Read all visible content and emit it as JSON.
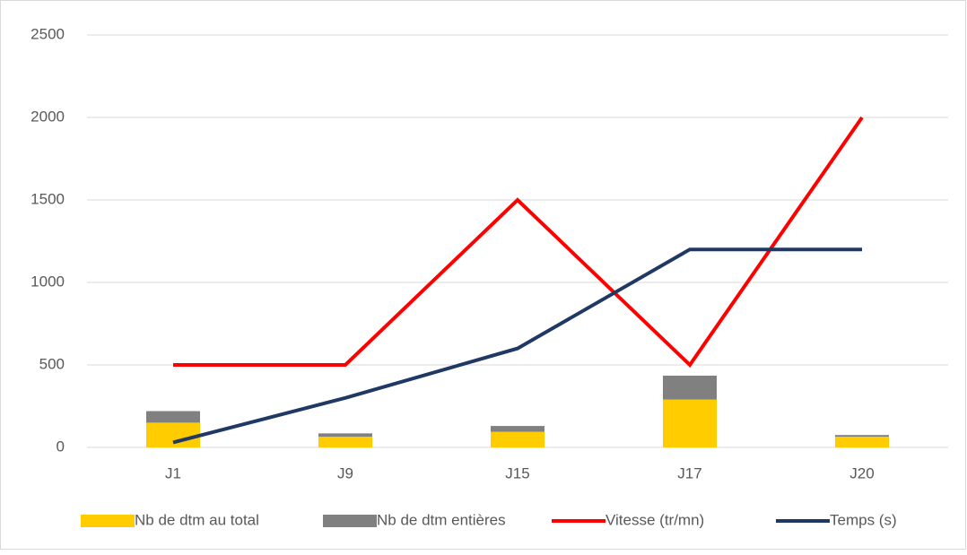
{
  "chart_data": {
    "type": "bar-line",
    "categories": [
      "J1",
      "J9",
      "J15",
      "J17",
      "J20"
    ],
    "series": [
      {
        "name": "Nb de dtm au total",
        "kind": "bar",
        "color": "#ffcc00",
        "values": [
          150,
          65,
          95,
          290,
          65
        ]
      },
      {
        "name": "Nb de dtm entières",
        "kind": "bar",
        "color": "#808080",
        "values": [
          70,
          20,
          35,
          145,
          10
        ]
      },
      {
        "name": "Vitesse (tr/mn)",
        "kind": "line",
        "color": "#ff0000",
        "values": [
          500,
          500,
          1500,
          500,
          2000
        ]
      },
      {
        "name": "Temps (s)",
        "kind": "line",
        "color": "#1f3864",
        "values": [
          30,
          300,
          600,
          1200,
          1200
        ]
      }
    ],
    "ylim": [
      0,
      2500
    ],
    "yticks": [
      0,
      500,
      1000,
      1500,
      2000,
      2500
    ],
    "grid": true,
    "legend": "bottom"
  }
}
